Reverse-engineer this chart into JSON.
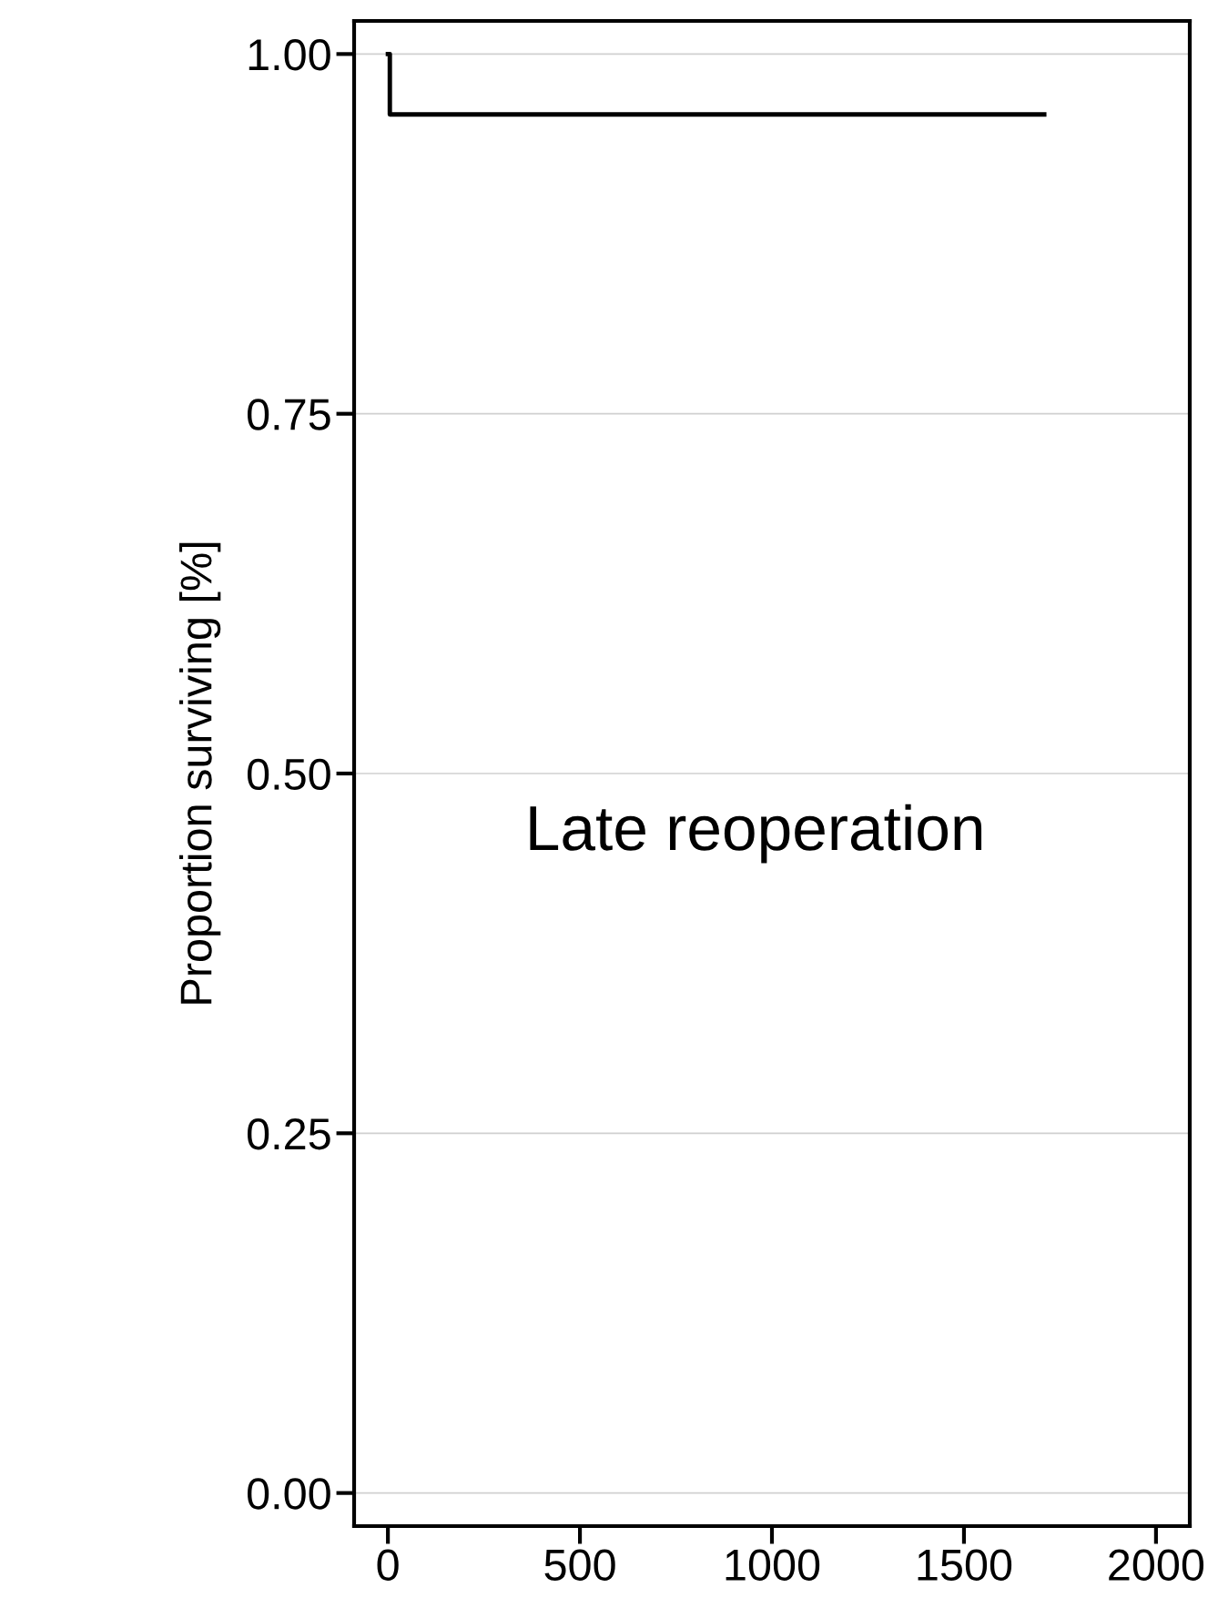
{
  "chart_data": {
    "type": "step",
    "ylabel": "Proportion surviving [%]",
    "annotations": [
      "Late reoperation"
    ],
    "x": [
      0,
      5,
      1709
    ],
    "series": [
      {
        "color": "#000000",
        "values": [
          1.0,
          0.958,
          0.958
        ]
      }
    ],
    "xlim": [
      -88,
      2088
    ],
    "xticks": [
      0,
      500,
      1000,
      1500,
      2000
    ],
    "ylim": [
      -0.023,
      1.023
    ],
    "yticks": [
      {
        "value": 0,
        "label": "0.00"
      },
      {
        "value": 0.25,
        "label": "0.25"
      },
      {
        "value": 0.5,
        "label": "0.50"
      },
      {
        "value": 0.75,
        "label": "0.75"
      },
      {
        "value": 1.0,
        "label": "1.00"
      }
    ],
    "grid": "y"
  }
}
